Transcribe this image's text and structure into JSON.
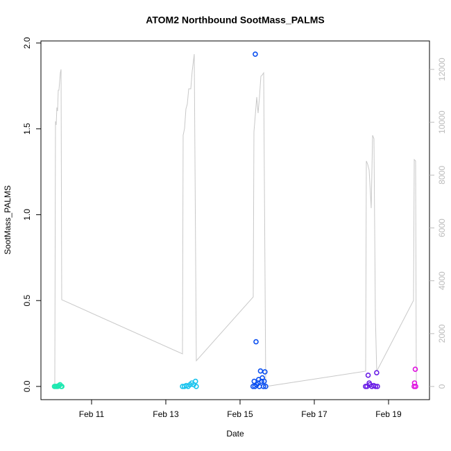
{
  "chart_data": {
    "type": "scatter",
    "title": "ATOM2 Northbound SootMass_PALMS",
    "x_label": "Date",
    "y_label": "SootMass_PALMS",
    "xlim": [
      9.636,
      20.103
    ],
    "xticks": [
      {
        "value": 11,
        "label": "Feb 11"
      },
      {
        "value": 13,
        "label": "Feb 13"
      },
      {
        "value": 15,
        "label": "Feb 15"
      },
      {
        "value": 17,
        "label": "Feb 17"
      },
      {
        "value": 19,
        "label": "Feb 19"
      }
    ],
    "ylim": [
      -0.077,
      2.012
    ],
    "yticks": [
      {
        "value": 0,
        "label": "0.0"
      },
      {
        "value": 0.5,
        "label": "0.5"
      },
      {
        "value": 1,
        "label": "1.0"
      },
      {
        "value": 1.5,
        "label": "1.5"
      },
      {
        "value": 2,
        "label": "2.0"
      }
    ],
    "y2lim": [
      -499,
      13077
    ],
    "y2ticks": [
      0,
      2000,
      4000,
      6000,
      8000,
      10000,
      12000
    ],
    "series": [
      {
        "color": "#1ee8b0",
        "x": [
          10.0,
          10.03,
          10.06,
          10.09,
          10.12,
          10.15,
          10.18,
          10.2
        ],
        "values": [
          0,
          0,
          0,
          0,
          0.005,
          0.01,
          0,
          0
        ]
      },
      {
        "color": "#18c3ee",
        "x": [
          13.45,
          13.5,
          13.55,
          13.6,
          13.65,
          13.7,
          13.75,
          13.8,
          13.82
        ],
        "values": [
          0,
          0,
          0.005,
          0,
          0.01,
          0.02,
          0.01,
          0.03,
          0
        ]
      },
      {
        "color": "#0a4ff0",
        "x": [
          15.35,
          15.38,
          15.4,
          15.41,
          15.43,
          15.45,
          15.48,
          15.5,
          15.52,
          15.55,
          15.58,
          15.6,
          15.63,
          15.65,
          15.67,
          15.69
        ],
        "values": [
          0,
          0.03,
          0,
          1.935,
          0.26,
          0.01,
          0.02,
          0.04,
          0,
          0.09,
          0.03,
          0.05,
          0,
          0.03,
          0.085,
          0
        ]
      },
      {
        "color": "#6a1ee6",
        "x": [
          18.38,
          18.42,
          18.45,
          18.48,
          18.5,
          18.55,
          18.6,
          18.65,
          18.68,
          18.7
        ],
        "values": [
          0,
          0,
          0.065,
          0.02,
          0.01,
          0,
          0.005,
          0,
          0.08,
          0
        ]
      },
      {
        "color": "#e010e0",
        "x": [
          19.69,
          19.7,
          19.72,
          19.73
        ],
        "values": [
          0,
          0.02,
          0.1,
          0
        ]
      }
    ],
    "line_series": {
      "color": "#c8c8c8",
      "axis": "y2",
      "x": [
        10.009,
        10.028,
        10.047,
        10.065,
        10.084,
        10.103,
        10.121,
        10.159,
        10.178,
        10.196,
        13.449,
        13.467,
        13.505,
        13.542,
        13.579,
        13.617,
        13.673,
        13.71,
        13.766,
        13.822,
        15.355,
        15.374,
        15.411,
        15.449,
        15.486,
        15.523,
        15.561,
        15.598,
        15.636,
        15.692,
        18.383,
        18.402,
        18.439,
        18.477,
        18.533,
        18.57,
        18.607,
        18.645,
        18.682,
        19.673,
        19.692,
        19.729,
        19.748
      ],
      "values": [
        0,
        10032,
        9900,
        10557,
        10425,
        11213,
        11213,
        11870,
        12001,
        3283,
        1234,
        9506,
        9769,
        10504,
        10688,
        11266,
        11266,
        11922,
        12579,
        972,
        3388,
        9638,
        10268,
        10951,
        10347,
        10951,
        11739,
        11791,
        11870,
        0,
        578,
        8535,
        8403,
        8193,
        6749,
        9506,
        9375,
        2679,
        578,
        3256,
        8587,
        8535,
        53
      ]
    }
  }
}
